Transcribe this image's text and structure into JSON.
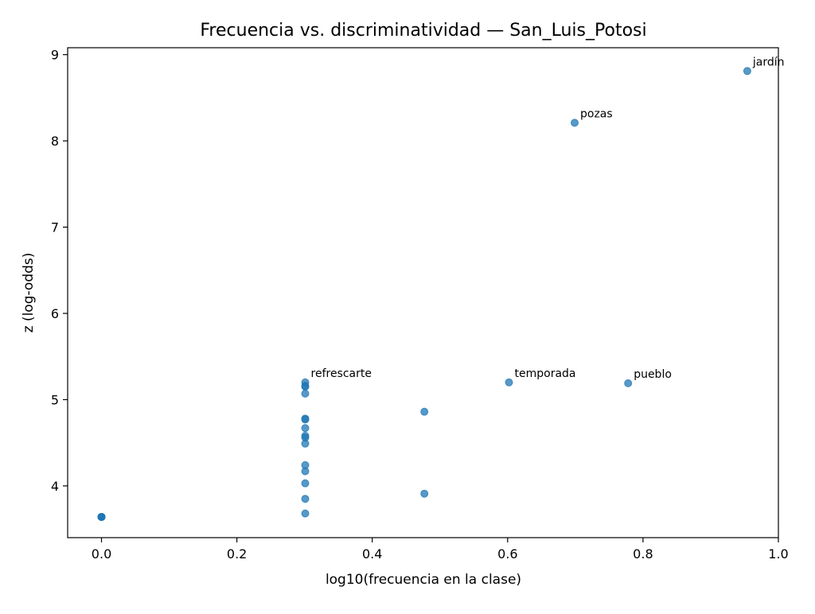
{
  "chart_data": {
    "type": "scatter",
    "title": "Frecuencia vs. discriminatividad — San_Luis_Potosi",
    "xlabel": "log10(frecuencia en la clase)",
    "ylabel": "z (log-odds)",
    "xlim": [
      -0.05,
      1.0
    ],
    "ylim": [
      3.4,
      9.08
    ],
    "x_ticks": [
      0.0,
      0.2,
      0.4,
      0.6,
      0.8,
      1.0
    ],
    "x_tick_labels": [
      "0.0",
      "0.2",
      "0.4",
      "0.6",
      "0.8",
      "1.0"
    ],
    "y_ticks": [
      4,
      5,
      6,
      7,
      8,
      9
    ],
    "y_tick_labels": [
      "4",
      "5",
      "6",
      "7",
      "8",
      "9"
    ],
    "grid": false,
    "marker_color": "#1f77b4",
    "series": [
      {
        "points": [
          {
            "x": 0.0,
            "y": 3.64
          },
          {
            "x": 0.0,
            "y": 3.64
          },
          {
            "x": 0.0,
            "y": 3.64
          },
          {
            "x": 0.0,
            "y": 3.64
          },
          {
            "x": 0.301,
            "y": 5.2
          },
          {
            "x": 0.301,
            "y": 5.16
          },
          {
            "x": 0.301,
            "y": 5.15
          },
          {
            "x": 0.301,
            "y": 5.07
          },
          {
            "x": 0.301,
            "y": 4.78
          },
          {
            "x": 0.301,
            "y": 4.77
          },
          {
            "x": 0.301,
            "y": 4.67
          },
          {
            "x": 0.301,
            "y": 4.58
          },
          {
            "x": 0.301,
            "y": 4.56
          },
          {
            "x": 0.301,
            "y": 4.49
          },
          {
            "x": 0.301,
            "y": 4.24
          },
          {
            "x": 0.301,
            "y": 4.17
          },
          {
            "x": 0.301,
            "y": 4.03
          },
          {
            "x": 0.301,
            "y": 3.85
          },
          {
            "x": 0.301,
            "y": 3.68
          },
          {
            "x": 0.477,
            "y": 4.86
          },
          {
            "x": 0.477,
            "y": 3.91
          },
          {
            "x": 0.602,
            "y": 5.2
          },
          {
            "x": 0.699,
            "y": 8.21
          },
          {
            "x": 0.778,
            "y": 5.19
          },
          {
            "x": 0.954,
            "y": 8.81
          }
        ]
      }
    ],
    "annotations": [
      {
        "text": "jardín",
        "x": 0.954,
        "y": 8.81
      },
      {
        "text": "pozas",
        "x": 0.699,
        "y": 8.21
      },
      {
        "text": "refrescarte",
        "x": 0.301,
        "y": 5.2
      },
      {
        "text": "temporada",
        "x": 0.602,
        "y": 5.2
      },
      {
        "text": "pueblo",
        "x": 0.778,
        "y": 5.19
      }
    ]
  }
}
